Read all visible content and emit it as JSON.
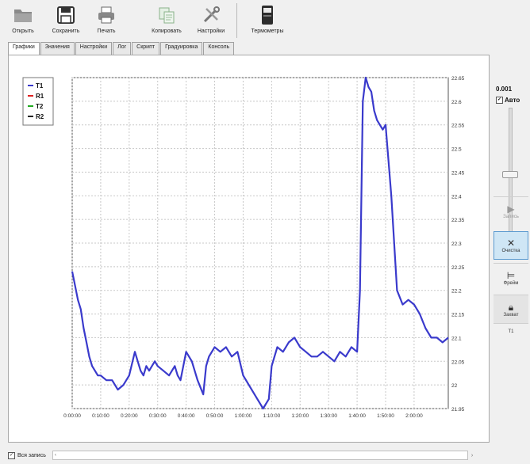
{
  "toolbar": {
    "buttons": [
      {
        "id": "open",
        "label": "Открыть",
        "icon": "folder-icon"
      },
      {
        "id": "save",
        "label": "Сохранить",
        "icon": "floppy-icon"
      },
      {
        "id": "print",
        "label": "Печать",
        "icon": "printer-icon"
      },
      {
        "id": "copy",
        "label": "Копировать",
        "icon": "copy-icon"
      },
      {
        "id": "settings",
        "label": "Настройки",
        "icon": "tools-icon"
      },
      {
        "id": "thermometers",
        "label": "Термометры",
        "icon": "thermometer-device-icon"
      }
    ]
  },
  "tabs": [
    "Графики",
    "Значения",
    "Настройки",
    "Лог",
    "Скрипт",
    "Градуировка",
    "Консоль"
  ],
  "active_tab": "Графики",
  "right_panel": {
    "value": "0.001",
    "auto_label": "Авто",
    "auto_checked": true,
    "record_label": "Запись",
    "clear_label": "Очистка",
    "fit_label": "Фрейм",
    "lock_label": "Захват",
    "channel_label": "T1"
  },
  "status": {
    "all_record_label": "Вся запись",
    "all_record_checked": true,
    "scroll_left_arrow": "‹",
    "scroll_right_arrow": "›"
  },
  "colors": {
    "T1": "#3a3acc",
    "R1": "#e02020",
    "T2": "#22aa22",
    "R2": "#222222",
    "accent": "#5b9ad0"
  },
  "chart_data": {
    "type": "line",
    "title": "",
    "xlabel": "",
    "ylabel": "",
    "legend": [
      "T1",
      "R1",
      "T2",
      "R2"
    ],
    "legend_position": "top-left",
    "grid": true,
    "ylim": [
      21.95,
      22.65
    ],
    "xlim": [
      0,
      7920
    ],
    "x_tick_values": [
      0,
      600,
      1200,
      1800,
      2400,
      3000,
      3600,
      4200,
      4800,
      5400,
      6000,
      6600,
      7200
    ],
    "x_tick_labels": [
      "0:00:00",
      "0:10:00",
      "0:20:00",
      "0:30:00",
      "0:40:00",
      "0:50:00",
      "1:00:00",
      "1:10:00",
      "1:20:00",
      "1:30:00",
      "1:40:00",
      "1:50:00",
      "2:00:00"
    ],
    "y_ticks": [
      22.65,
      22.6,
      22.55,
      22.5,
      22.45,
      22.4,
      22.35,
      22.3,
      22.25,
      22.2,
      22.15,
      22.1,
      22.05,
      22,
      21.95
    ],
    "y_tick_labels": [
      "22.65",
      "22.6",
      "22.55",
      "22.5",
      "22.45",
      "22.4",
      "22.35",
      "22.3",
      "22.25",
      "22.2",
      "22.15",
      "22.1",
      "22.05",
      "22",
      "21.95"
    ],
    "series": [
      {
        "name": "T1",
        "x": [
          0,
          60,
          120,
          180,
          240,
          300,
          360,
          420,
          480,
          540,
          600,
          720,
          840,
          960,
          1080,
          1200,
          1320,
          1380,
          1440,
          1500,
          1560,
          1620,
          1680,
          1740,
          1800,
          1920,
          2040,
          2160,
          2220,
          2280,
          2400,
          2520,
          2640,
          2760,
          2820,
          2880,
          2940,
          3000,
          3120,
          3240,
          3360,
          3480,
          3600,
          3720,
          3840,
          3960,
          4020,
          4080,
          4140,
          4200,
          4320,
          4440,
          4560,
          4680,
          4800,
          4920,
          5040,
          5160,
          5280,
          5400,
          5520,
          5640,
          5760,
          5880,
          6000,
          6060,
          6090,
          6120,
          6180,
          6240,
          6300,
          6360,
          6420,
          6480,
          6540,
          6600,
          6720,
          6840,
          6960,
          7080,
          7200,
          7320,
          7440,
          7560,
          7680,
          7800,
          7920
        ],
        "values": [
          22.24,
          22.21,
          22.18,
          22.16,
          22.12,
          22.09,
          22.06,
          22.04,
          22.03,
          22.02,
          22.02,
          22.01,
          22.01,
          21.99,
          22.0,
          22.02,
          22.07,
          22.05,
          22.03,
          22.02,
          22.04,
          22.03,
          22.04,
          22.05,
          22.04,
          22.03,
          22.02,
          22.04,
          22.02,
          22.01,
          22.07,
          22.05,
          22.01,
          21.98,
          22.04,
          22.06,
          22.07,
          22.08,
          22.07,
          22.08,
          22.06,
          22.07,
          22.02,
          22.0,
          21.98,
          21.96,
          21.95,
          21.96,
          21.97,
          22.04,
          22.08,
          22.07,
          22.09,
          22.1,
          22.08,
          22.07,
          22.06,
          22.06,
          22.07,
          22.06,
          22.05,
          22.07,
          22.06,
          22.08,
          22.07,
          22.2,
          22.4,
          22.6,
          22.65,
          22.63,
          22.62,
          22.58,
          22.56,
          22.55,
          22.54,
          22.55,
          22.4,
          22.2,
          22.17,
          22.18,
          22.17,
          22.15,
          22.12,
          22.1,
          22.1,
          22.09,
          22.1
        ]
      },
      {
        "name": "R1",
        "x": [],
        "values": []
      },
      {
        "name": "T2",
        "x": [],
        "values": []
      },
      {
        "name": "R2",
        "x": [],
        "values": []
      }
    ]
  }
}
